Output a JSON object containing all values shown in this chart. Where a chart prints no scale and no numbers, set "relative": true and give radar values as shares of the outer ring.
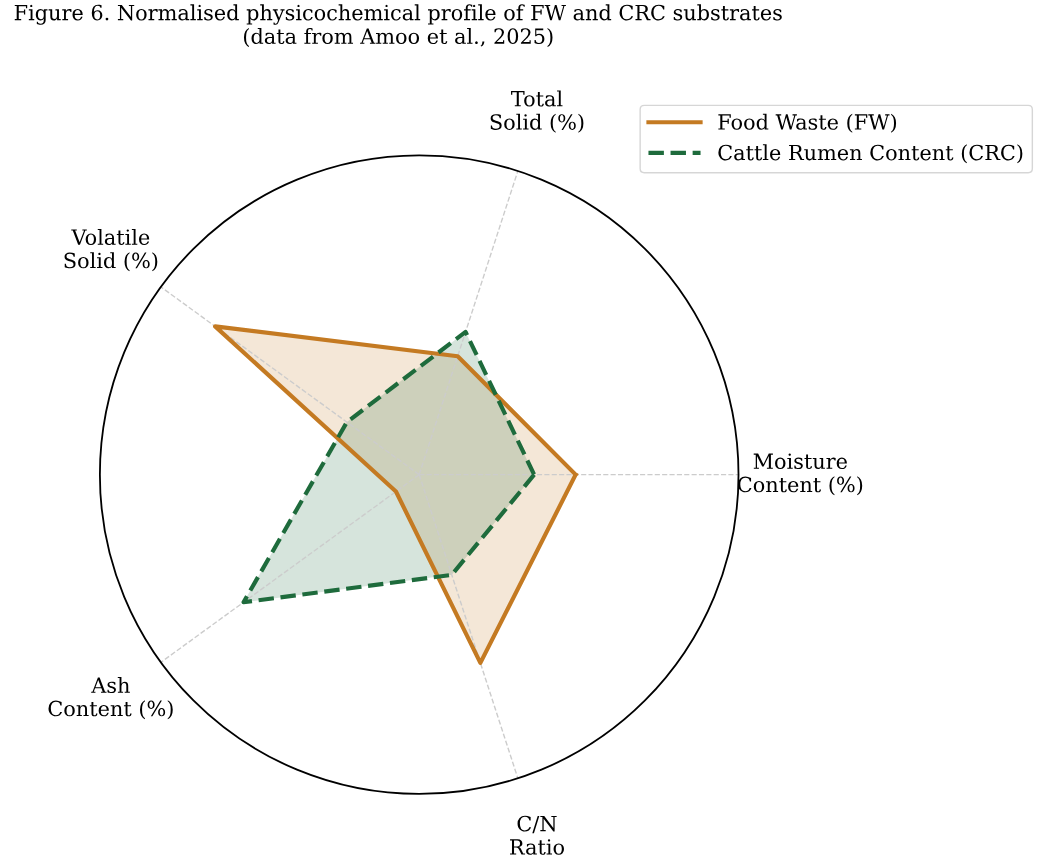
{
  "chart_data": {
    "type": "radar",
    "title": "Figure 6. Normalised physicochemical profile of FW and CRC substrates\n(data from Amoo et al., 2025)",
    "categories": [
      "Moisture\nContent (%)",
      "C/N\nRatio",
      "Ash\nContent (%)",
      "Volatile\nSolid (%)",
      "Total\nSolid (%)"
    ],
    "relative": true,
    "grid": "x",
    "legend": "top right",
    "marker": "none",
    "series": [
      {
        "name": "Food Waste (FW)",
        "color": "#c47a22",
        "line_style": "solid",
        "values": [
          0.49,
          0.62,
          0.09,
          0.79,
          0.39
        ]
      },
      {
        "name": "Cattle Rumen Content (CRC)",
        "color": "#1e6b3c",
        "line_style": "dashed",
        "values": [
          0.36,
          0.33,
          0.68,
          0.28,
          0.47
        ]
      }
    ]
  }
}
